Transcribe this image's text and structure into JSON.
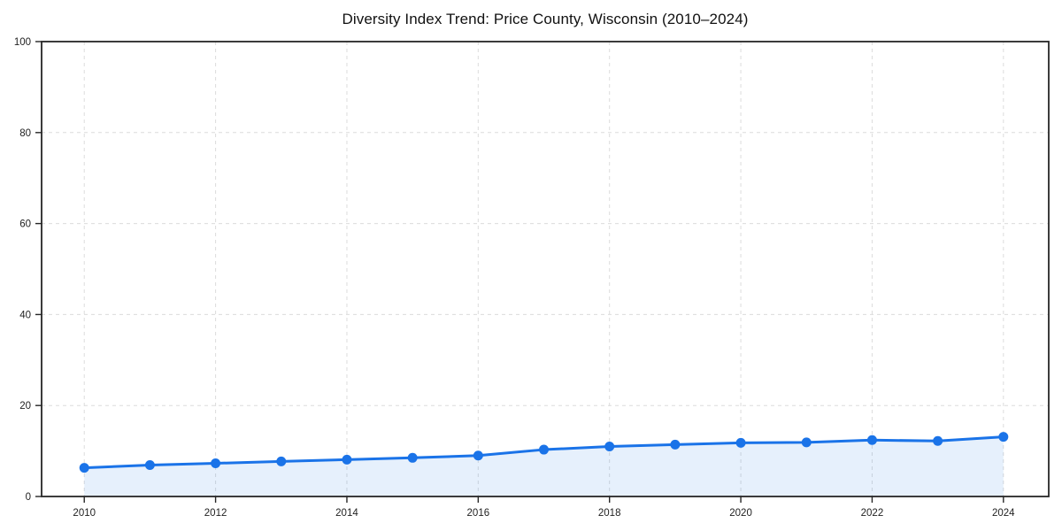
{
  "chart_data": {
    "type": "line",
    "title": "Diversity Index Trend: Price County, Wisconsin (2010–2024)",
    "series_name": "Diversity Index",
    "x": [
      2010,
      2011,
      2012,
      2013,
      2014,
      2015,
      2016,
      2017,
      2018,
      2019,
      2020,
      2021,
      2022,
      2023,
      2024
    ],
    "values": [
      6.3,
      6.9,
      7.3,
      7.7,
      8.1,
      8.5,
      9.0,
      10.3,
      11.0,
      11.4,
      11.8,
      11.9,
      12.4,
      12.2,
      13.1
    ],
    "xlabel": "",
    "ylabel": "",
    "xlim": [
      2009.35,
      2024.69
    ],
    "ylim": [
      0,
      100
    ],
    "xticks": [
      2010,
      2012,
      2014,
      2016,
      2018,
      2020,
      2022,
      2024
    ],
    "yticks": [
      0,
      20,
      40,
      60,
      80,
      100
    ],
    "grid": true,
    "grid_style": "dashed",
    "legend": false,
    "area_fill": true,
    "colors": {
      "line": "#1a73e8",
      "marker": "#1a73e8",
      "fill": "rgba(26,115,232,0.11)",
      "grid": "#dcdcdc",
      "spine": "#262626",
      "tick": "#262626",
      "tick_label": "#222222",
      "title": "#111111",
      "background": "#ffffff"
    }
  }
}
